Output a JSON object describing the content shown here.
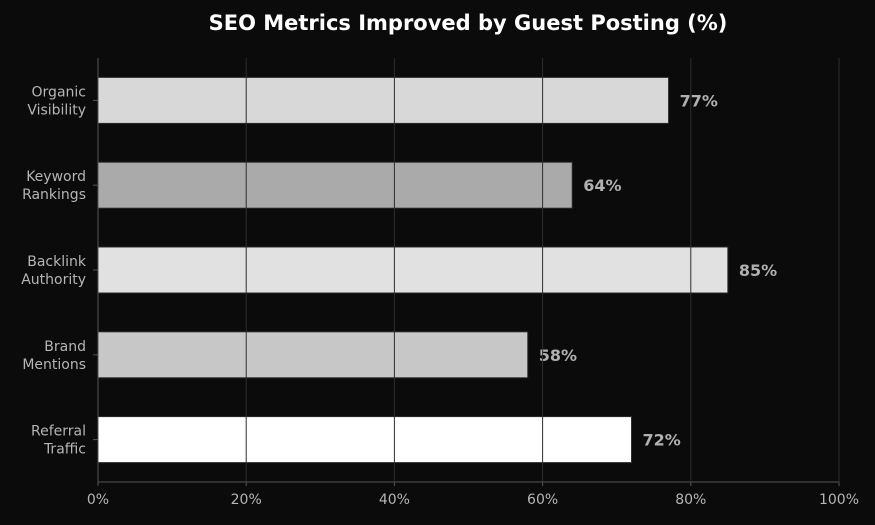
{
  "chart_data": {
    "type": "bar",
    "orientation": "horizontal",
    "title": "SEO Metrics Improved by Guest Posting (%)",
    "xlabel": "",
    "ylabel": "",
    "categories": [
      "Organic\nVisibility",
      "Keyword\nRankings",
      "Backlink\nAuthority",
      "Brand\nMentions",
      "Referral\nTraffic"
    ],
    "values": [
      77,
      64,
      85,
      58,
      72
    ],
    "value_labels": [
      "77%",
      "64%",
      "85%",
      "58%",
      "72%"
    ],
    "xlim": [
      0,
      100
    ],
    "xticks": [
      0,
      20,
      40,
      60,
      80,
      100
    ],
    "xtick_labels": [
      "0%",
      "20%",
      "40%",
      "60%",
      "80%",
      "100%"
    ],
    "grid": "vertical",
    "legend": "none",
    "colors": {
      "background": "#0b0b0b",
      "bars": [
        "#d8d8d8",
        "#aaaaaa",
        "#e1e1e1",
        "#c7c7c7",
        "#ffffff"
      ],
      "bar_edge": "#2a2a2a",
      "grid": "#2e2e2e",
      "axis": "#555555",
      "title": "#ffffff",
      "tick_text": "#b5b5b5",
      "value_text": "#b0b0b0"
    }
  }
}
